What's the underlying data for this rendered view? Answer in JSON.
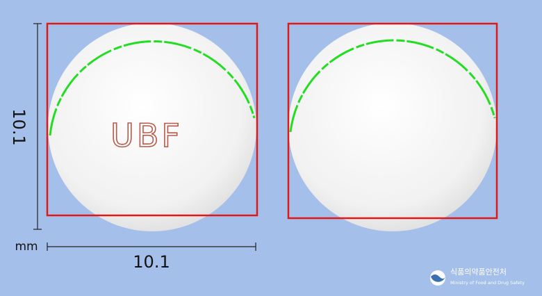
{
  "pill": {
    "front_imprint": "UBF"
  },
  "dimensions": {
    "height": "10.1",
    "width": "10.1",
    "unit": "mm"
  },
  "logo": {
    "korean_name": "식품의약품안전처",
    "english_name": "Ministry of Food and Drug Safety"
  }
}
